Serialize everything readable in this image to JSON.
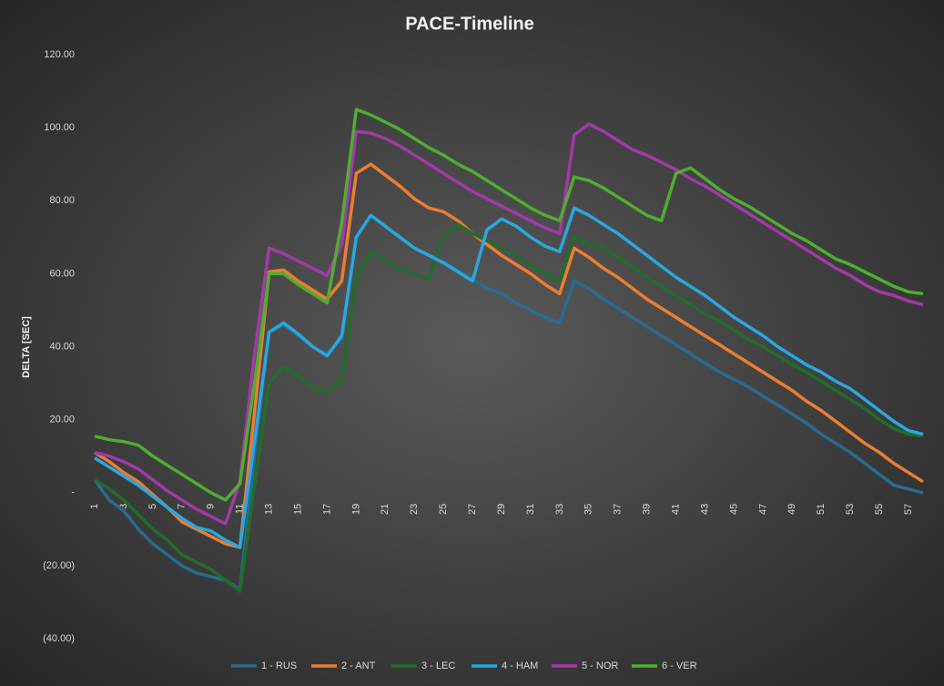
{
  "chart_data": {
    "type": "line",
    "title": "PACE-Timeline",
    "y_label": "DELTA [SEC]",
    "categories": [
      1,
      null,
      3,
      null,
      5,
      null,
      7,
      null,
      9,
      null,
      11,
      null,
      13,
      null,
      15,
      null,
      17,
      null,
      19,
      null,
      21,
      null,
      23,
      null,
      25,
      null,
      27,
      null,
      29,
      null,
      31,
      null,
      33,
      null,
      35,
      null,
      37,
      null,
      39,
      null,
      41,
      null,
      43,
      null,
      45,
      null,
      47,
      null,
      49,
      null,
      51,
      null,
      53,
      null,
      55,
      null,
      57,
      null
    ],
    "ylim": [
      -40,
      120
    ],
    "yticks": [
      {
        "value": -40,
        "label": "(40.00)"
      },
      {
        "value": -20,
        "label": "(20.00)"
      },
      {
        "value": 0,
        "label": "-"
      },
      {
        "value": 20,
        "label": "20.00"
      },
      {
        "value": 40,
        "label": "40.00"
      },
      {
        "value": 60,
        "label": "60.00"
      },
      {
        "value": 80,
        "label": "80.00"
      },
      {
        "value": 100,
        "label": "100.00"
      },
      {
        "value": 120,
        "label": "120.00"
      }
    ],
    "grid": false,
    "legend": "bottom",
    "series": [
      {
        "name": "1 - RUS",
        "color": "#2a6b90",
        "values": [
          3.5,
          -2,
          -5,
          -10,
          -14,
          -17,
          -20,
          -22,
          -23,
          -24,
          -26.5,
          10,
          44,
          46,
          43,
          40,
          38,
          42,
          70,
          76,
          73,
          70,
          67,
          65,
          63,
          61,
          58.5,
          56,
          54.5,
          52,
          50,
          48,
          46.5,
          58,
          56,
          53,
          50.5,
          48,
          45.5,
          43,
          40.5,
          38,
          35.5,
          33,
          31,
          29,
          26.5,
          24,
          21.5,
          19,
          16,
          13.5,
          11,
          8,
          5,
          2,
          1,
          0
        ]
      },
      {
        "name": "2 - ANT",
        "color": "#ed7d31",
        "values": [
          11,
          8.5,
          5.5,
          3,
          -0.5,
          -4,
          -8,
          -10,
          -12,
          -14,
          -15,
          22,
          60.5,
          61,
          58,
          55.5,
          53,
          58,
          87.5,
          90,
          87,
          84,
          80.5,
          78,
          77,
          74.5,
          71,
          68,
          65,
          62.5,
          60,
          57,
          54.5,
          67,
          64.5,
          61.5,
          59,
          56,
          53,
          50.5,
          48,
          45.5,
          43,
          40.5,
          38,
          35.5,
          33,
          30.5,
          28,
          25,
          22.5,
          19.5,
          16.5,
          13.5,
          11,
          8,
          5.5,
          3
        ]
      },
      {
        "name": "3 - LEC",
        "color": "#1f6e2b",
        "values": [
          3.5,
          1,
          -2,
          -6,
          -10,
          -13,
          -17,
          -19,
          -21,
          -24,
          -27,
          2,
          30,
          34.5,
          32,
          29,
          27.5,
          31,
          59,
          66,
          63.5,
          61.5,
          60,
          58.5,
          70,
          73.5,
          71,
          69,
          67,
          65,
          62.5,
          60,
          58,
          70,
          68,
          67,
          64.5,
          62,
          59,
          56.5,
          54,
          51.5,
          49,
          47,
          44.5,
          42,
          40,
          37.5,
          35,
          33,
          30.5,
          28,
          25.5,
          23,
          20,
          17.5,
          16,
          15.5
        ]
      },
      {
        "name": "4 - HAM",
        "color": "#29a8e0",
        "values": [
          9.5,
          7,
          4.5,
          2,
          -1,
          -4,
          -7,
          -9.5,
          -10.5,
          -13,
          -15,
          14,
          44,
          46.5,
          43.5,
          40,
          37.5,
          43,
          70,
          76,
          73,
          70,
          67,
          65,
          63,
          60.5,
          58,
          72,
          75,
          73,
          70,
          67.5,
          66,
          78,
          76,
          73.5,
          71,
          68,
          65,
          62,
          59,
          56.5,
          54,
          51,
          48,
          45.5,
          43,
          40,
          37.5,
          35,
          33,
          30.5,
          28.5,
          25.5,
          22.5,
          19.5,
          17,
          16
        ]
      },
      {
        "name": "5 - NOR",
        "color": "#a23aa8",
        "values": [
          11,
          10,
          8.5,
          6.5,
          3.5,
          0.5,
          -2,
          -4.5,
          -6.5,
          -8.5,
          3,
          38,
          67,
          65.5,
          63.5,
          61.5,
          59.5,
          68,
          99,
          98.5,
          97,
          95,
          92.5,
          90,
          87.5,
          85,
          82.5,
          80.5,
          78.5,
          76.5,
          74.5,
          72.5,
          71,
          98,
          101,
          99,
          96.5,
          94,
          92.5,
          90.5,
          88.5,
          86,
          84,
          81.5,
          79,
          76.5,
          74,
          71.5,
          69,
          66.5,
          64,
          61.5,
          59.5,
          57,
          55,
          54,
          52.5,
          51.5
        ]
      },
      {
        "name": "6 - VER",
        "color": "#4fae30",
        "values": [
          15.5,
          14.5,
          14,
          13,
          10,
          7.5,
          5,
          2.5,
          0,
          -2,
          2.5,
          30,
          60,
          60,
          57,
          54.5,
          52,
          74,
          105,
          103.5,
          101.5,
          99.5,
          97,
          94.5,
          92.5,
          90,
          88,
          85.5,
          83,
          80.5,
          78,
          76,
          74.5,
          86.5,
          85.5,
          83.5,
          81,
          78.5,
          76,
          74.5,
          87.5,
          89,
          86,
          83,
          80.5,
          78.5,
          76,
          73.5,
          71,
          69,
          66.5,
          64,
          62.5,
          60.5,
          58.5,
          56.5,
          55,
          54.5
        ]
      }
    ]
  }
}
